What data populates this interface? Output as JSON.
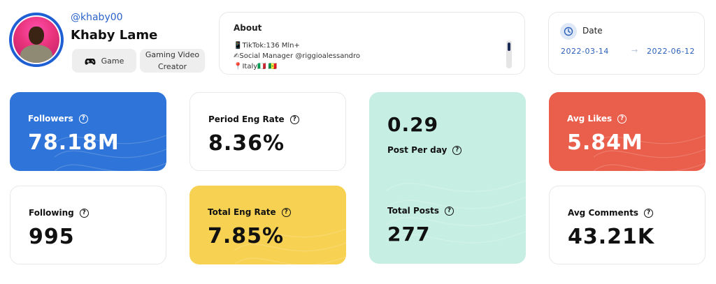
{
  "profile": {
    "handle": "@khaby00",
    "name": "Khaby Lame",
    "tags": [
      {
        "label": "Game",
        "icon": "gamepad-icon"
      },
      {
        "label": "Gaming Video Creator"
      }
    ]
  },
  "about": {
    "title": "About",
    "lines": [
      {
        "icon": "📱",
        "text": "TikTok:136 Mln+"
      },
      {
        "icon": "✍",
        "text": "Social Manager @riggioalessandro"
      },
      {
        "icon": "📍",
        "text": "Italy🇮🇹 🇸🇳"
      }
    ]
  },
  "date": {
    "label": "Date",
    "start": "2022-03-14",
    "arrow": "→",
    "end": "2022-06-12"
  },
  "stats": {
    "followers": {
      "label": "Followers",
      "value": "78.18M"
    },
    "period_eng_rate": {
      "label": "Period Eng Rate",
      "value": "8.36%"
    },
    "post_per_day": {
      "label": "Post Per day",
      "value": "0.29"
    },
    "total_posts": {
      "label": "Total Posts",
      "value": "277"
    },
    "avg_likes": {
      "label": "Avg Likes",
      "value": "5.84M"
    },
    "following": {
      "label": "Following",
      "value": "995"
    },
    "total_eng_rate": {
      "label": "Total Eng Rate",
      "value": "7.85%"
    },
    "avg_comments": {
      "label": "Avg Comments",
      "value": "43.21K"
    }
  },
  "help_glyph": "?",
  "colors": {
    "followers": "#2f74d8",
    "posts": "#c6eee2",
    "avg_likes": "#ea5e4c",
    "total_eng_rate": "#f7d152",
    "accent": "#2a62c9"
  }
}
